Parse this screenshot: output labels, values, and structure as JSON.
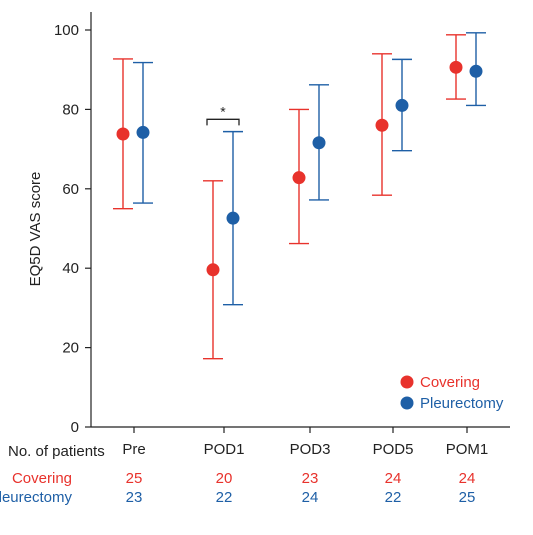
{
  "colors": {
    "covering": "#e8322c",
    "pleurectomy": "#1e5fa6",
    "axis": "#222222"
  },
  "chart_data": {
    "type": "scatter",
    "ylabel": "EQ5D VAS score",
    "ylim": [
      0,
      100
    ],
    "yticks": [
      0,
      20,
      40,
      60,
      80,
      100
    ],
    "categories": [
      "Pre",
      "POD1",
      "POD3",
      "POD5",
      "POM1"
    ],
    "legend_position": "bottom-right",
    "series": [
      {
        "name": "Covering",
        "mean": [
          73.8,
          39.6,
          62.8,
          76.0,
          90.6
        ],
        "lower": [
          55.0,
          17.2,
          46.2,
          58.4,
          82.6
        ],
        "upper": [
          92.7,
          62.0,
          80.0,
          94.0,
          98.8
        ]
      },
      {
        "name": "Pleurectomy",
        "mean": [
          74.2,
          52.6,
          71.6,
          81.0,
          89.6
        ],
        "lower": [
          56.4,
          30.8,
          57.2,
          69.6,
          81.0
        ],
        "upper": [
          91.8,
          74.4,
          86.2,
          92.6,
          99.3
        ]
      }
    ],
    "annotation": {
      "text": "*",
      "category": "POD1",
      "y": 77.5
    }
  },
  "patients_table": {
    "header": "No. of patients",
    "rows": [
      {
        "label": "Covering",
        "values": [
          "25",
          "20",
          "23",
          "24",
          "24"
        ]
      },
      {
        "label": "Pleurectomy",
        "values": [
          "23",
          "22",
          "24",
          "22",
          "25"
        ]
      }
    ]
  }
}
